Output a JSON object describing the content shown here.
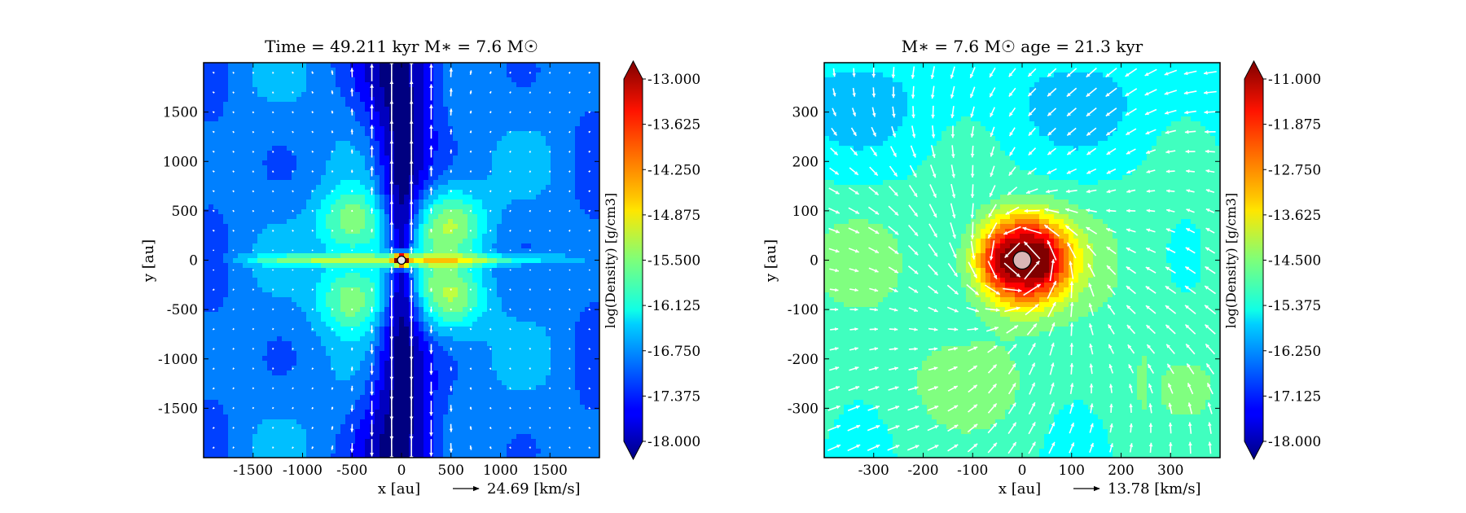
{
  "chart_data": [
    {
      "type": "heatmap",
      "title": "Time = 49.211 kyr    M∗ = 7.6 M☉",
      "xlabel": "x [au]",
      "ylabel": "y [au]",
      "xlim": [
        -2000,
        2000
      ],
      "ylim": [
        -2000,
        2000
      ],
      "xticks": [
        -1500,
        -1000,
        -500,
        0,
        500,
        1000,
        1500
      ],
      "yticks": [
        -1500,
        -1000,
        -500,
        0,
        500,
        1000,
        1500
      ],
      "xtick_labels": [
        "-1500",
        "-1000",
        "-500",
        "0",
        "500",
        "1000",
        "1500"
      ],
      "ytick_labels": [
        "-1500",
        "-1000",
        "-500",
        "0",
        "500",
        "1000",
        "1500"
      ],
      "colorbar": {
        "label": "log(Density) [g/cm3]",
        "range": [
          -18.0,
          -13.0
        ],
        "ticks": [
          -13.0,
          -13.625,
          -14.25,
          -14.875,
          -15.5,
          -16.125,
          -16.75,
          -17.375,
          -18.0
        ],
        "tick_labels": [
          "-13.000",
          "-13.625",
          "-14.250",
          "-14.875",
          "-15.500",
          "-16.125",
          "-16.750",
          "-17.375",
          "-18.000"
        ],
        "colormap": "jet"
      },
      "velocity_key": {
        "value": 24.69,
        "label": "24.69 [km/s]"
      },
      "star": {
        "x": 0,
        "y": 0
      },
      "field": "outflow-disk"
    },
    {
      "type": "heatmap",
      "title": "M∗ = 7.6 M☉         age = 21.3 kyr",
      "xlabel": "x [au]",
      "ylabel": "y [au]",
      "xlim": [
        -400,
        400
      ],
      "ylim": [
        -400,
        400
      ],
      "xticks": [
        -300,
        -200,
        -100,
        0,
        100,
        200,
        300
      ],
      "yticks": [
        -300,
        -200,
        -100,
        0,
        100,
        200,
        300
      ],
      "xtick_labels": [
        "-300",
        "-200",
        "-100",
        "0",
        "100",
        "200",
        "300"
      ],
      "ytick_labels": [
        "-300",
        "-200",
        "-100",
        "0",
        "100",
        "200",
        "300"
      ],
      "colorbar": {
        "label": "log(Density) [g/cm3]",
        "range": [
          -18.0,
          -11.0
        ],
        "ticks": [
          -11.0,
          -11.875,
          -12.75,
          -13.625,
          -14.5,
          -15.375,
          -16.25,
          -17.125,
          -18.0
        ],
        "tick_labels": [
          "-11.000",
          "-11.875",
          "-12.750",
          "-13.625",
          "-14.500",
          "-15.375",
          "-16.250",
          "-17.125",
          "-18.000"
        ],
        "colormap": "jet"
      },
      "velocity_key": {
        "value": 13.78,
        "label": "13.78 [km/s]"
      },
      "star": {
        "x": 0,
        "y": 0
      },
      "field": "rotating-core"
    }
  ]
}
